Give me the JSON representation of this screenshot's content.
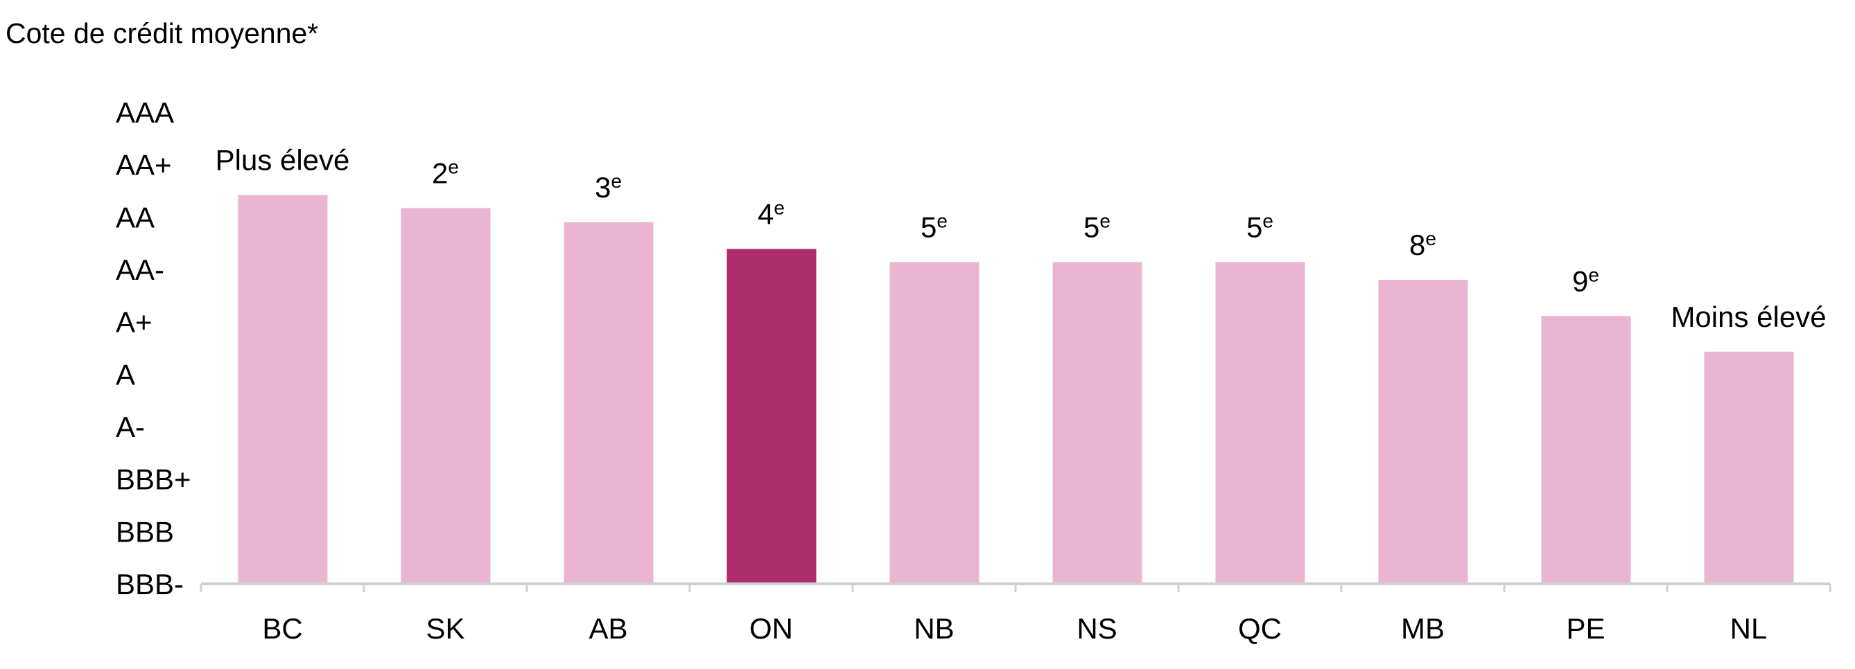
{
  "chart_data": {
    "type": "bar",
    "title": "Cote de crédit moyenne*",
    "categories": [
      "BC",
      "SK",
      "AB",
      "ON",
      "NB",
      "NS",
      "QC",
      "MB",
      "PE",
      "NL"
    ],
    "values": [
      7.42,
      7.17,
      6.9,
      6.39,
      6.14,
      6.14,
      6.14,
      5.8,
      5.11,
      4.43
    ],
    "colors": [
      "#e9b5d3",
      "#e9b5d3",
      "#e9b5d3",
      "#ae2d6d",
      "#e9b5d3",
      "#e9b5d3",
      "#e9b5d3",
      "#e9b5d3",
      "#e9b5d3",
      "#e9b5d3"
    ],
    "annotations": [
      {
        "text": "Plus élevé"
      },
      {
        "text": "2",
        "sup": "e"
      },
      {
        "text": "3",
        "sup": "e"
      },
      {
        "text": "4",
        "sup": "e"
      },
      {
        "text": "5",
        "sup": "e"
      },
      {
        "text": "5",
        "sup": "e"
      },
      {
        "text": "5",
        "sup": "e"
      },
      {
        "text": "8",
        "sup": "e"
      },
      {
        "text": "9",
        "sup": "e"
      },
      {
        "text": "Moins élevé"
      }
    ],
    "ylim": [
      0,
      9
    ],
    "yticks": [
      {
        "value": 0,
        "label": "BBB-"
      },
      {
        "value": 1,
        "label": "BBB"
      },
      {
        "value": 2,
        "label": "BBB+"
      },
      {
        "value": 3,
        "label": "A-"
      },
      {
        "value": 4,
        "label": "A"
      },
      {
        "value": 5,
        "label": "A+"
      },
      {
        "value": 6,
        "label": "AA-"
      },
      {
        "value": 7,
        "label": "AA"
      },
      {
        "value": 8,
        "label": "AA+"
      },
      {
        "value": 9,
        "label": "AAA"
      }
    ],
    "grid": false
  }
}
